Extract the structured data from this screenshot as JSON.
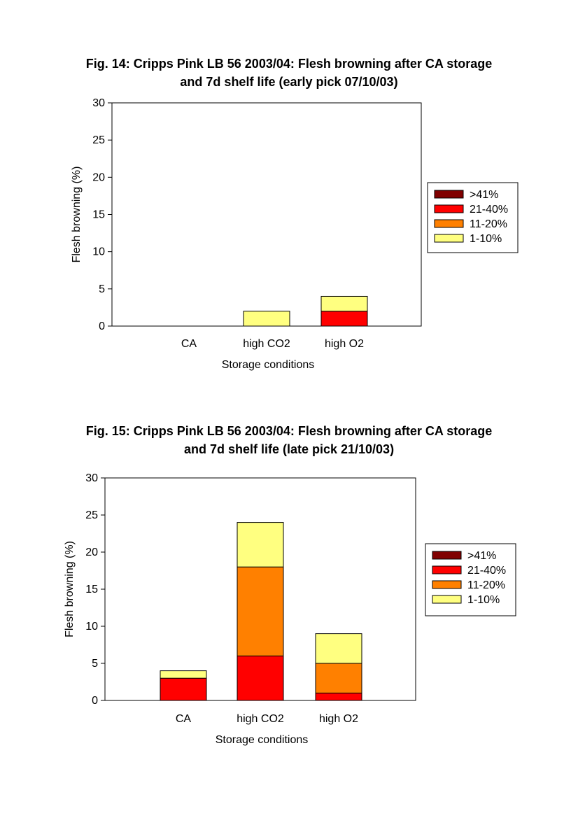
{
  "chart_data": [
    {
      "type": "bar",
      "stacked": true,
      "title_line1": "Fig. 14: Cripps Pink LB 56 2003/04: Flesh browning after CA storage",
      "title_line2": "and 7d shelf life (early pick 07/10/03)",
      "xlabel": "Storage conditions",
      "ylabel": "Flesh browning (%)",
      "ylim": [
        0,
        30
      ],
      "yticks": [
        0,
        5,
        10,
        15,
        20,
        25,
        30
      ],
      "categories": [
        "CA",
        "high CO2",
        "high O2"
      ],
      "series": [
        {
          "name": "1-10%",
          "values": [
            0,
            2,
            2
          ],
          "color": "#ffff80"
        },
        {
          "name": "11-20%",
          "values": [
            0,
            0,
            0
          ],
          "color": "#ff8000"
        },
        {
          "name": "21-40%",
          "values": [
            0,
            0,
            2
          ],
          "color": "#ff0000"
        },
        {
          "name": ">41%",
          "values": [
            0,
            0,
            0
          ],
          "color": "#800000"
        }
      ],
      "stack_order": [
        "21-40%",
        "11-20%",
        "1-10%",
        ">41%"
      ],
      "legend_order": [
        ">41%",
        "21-40%",
        "11-20%",
        "1-10%"
      ],
      "legend_position": "right",
      "grid": false
    },
    {
      "type": "bar",
      "stacked": true,
      "title_line1": "Fig. 15: Cripps Pink LB 56 2003/04: Flesh browning after CA storage",
      "title_line2": "and 7d shelf life (late pick 21/10/03)",
      "xlabel": "Storage conditions",
      "ylabel": "Flesh browning (%)",
      "ylim": [
        0,
        30
      ],
      "yticks": [
        0,
        5,
        10,
        15,
        20,
        25,
        30
      ],
      "categories": [
        "CA",
        "high CO2",
        "high O2"
      ],
      "series": [
        {
          "name": "1-10%",
          "values": [
            1,
            6,
            4
          ],
          "color": "#ffff80"
        },
        {
          "name": "11-20%",
          "values": [
            0,
            12,
            4
          ],
          "color": "#ff8000"
        },
        {
          "name": "21-40%",
          "values": [
            3,
            6,
            1
          ],
          "color": "#ff0000"
        },
        {
          "name": ">41%",
          "values": [
            0,
            0,
            0
          ],
          "color": "#800000"
        }
      ],
      "stack_order": [
        "21-40%",
        "11-20%",
        "1-10%",
        ">41%"
      ],
      "legend_order": [
        ">41%",
        "21-40%",
        "11-20%",
        "1-10%"
      ],
      "legend_position": "right",
      "grid": false
    }
  ]
}
